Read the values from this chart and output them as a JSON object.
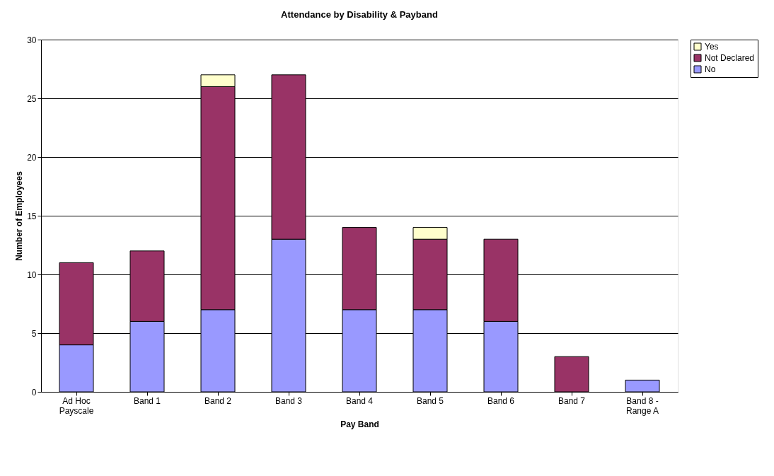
{
  "chart_data": {
    "type": "bar",
    "title": "Attendance by Disability & Payband",
    "xlabel": "Pay Band",
    "ylabel": "Number of Employees",
    "categories": [
      "Ad Hoc Payscale",
      "Band 1",
      "Band 2",
      "Band 3",
      "Band 4",
      "Band 5",
      "Band 6",
      "Band 7",
      "Band 8 - Range A"
    ],
    "stacked": true,
    "series": [
      {
        "name": "No",
        "color": "#9999ff",
        "values": [
          4,
          6,
          7,
          13,
          7,
          7,
          6,
          null,
          1
        ]
      },
      {
        "name": "Not Declared",
        "color": "#993366",
        "values": [
          7,
          6,
          19,
          14,
          7,
          6,
          7,
          3,
          null
        ]
      },
      {
        "name": "Yes",
        "color": "#ffffcc",
        "values": [
          null,
          null,
          1,
          null,
          null,
          1,
          null,
          null,
          null
        ]
      }
    ],
    "ylim": [
      0,
      30
    ],
    "yticks": [
      0,
      5,
      10,
      15,
      20,
      25,
      30
    ],
    "grid": "y",
    "legend": "right"
  }
}
